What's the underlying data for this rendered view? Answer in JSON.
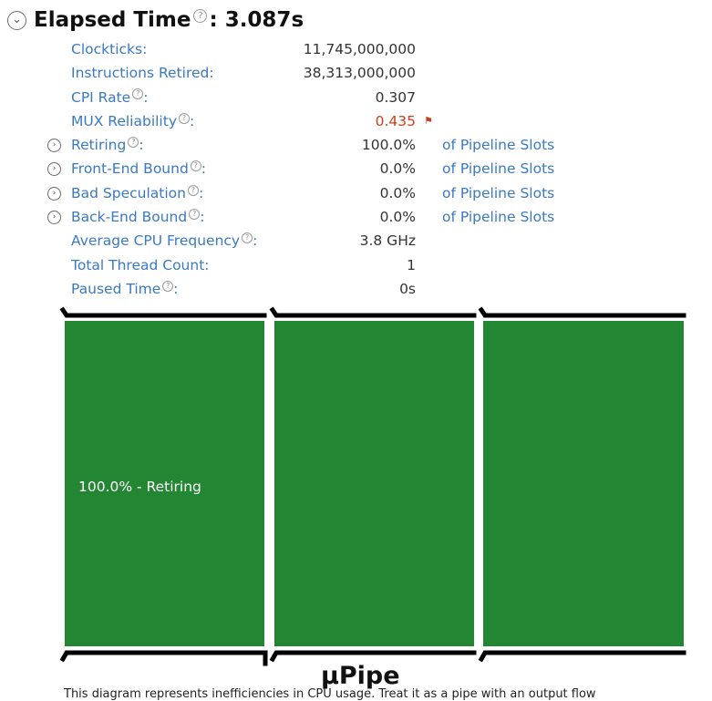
{
  "header": {
    "expand_icon": "circle-chevron-down-icon",
    "title": "Elapsed Time",
    "help_icon": "question-circle-icon",
    "value": ": 3.087s"
  },
  "metrics": [
    {
      "label": "Clockticks",
      "help": false,
      "expandable": false,
      "value": "11,745,000,000",
      "unit": ""
    },
    {
      "label": "Instructions Retired",
      "help": false,
      "expandable": false,
      "value": "38,313,000,000",
      "unit": ""
    },
    {
      "label": "CPI Rate",
      "help": true,
      "expandable": false,
      "value": "0.307",
      "unit": ""
    },
    {
      "label": "MUX Reliability",
      "help": true,
      "expandable": false,
      "value": "0.435",
      "unit": "",
      "warning": true
    },
    {
      "label": "Retiring",
      "help": true,
      "expandable": true,
      "value": "100.0%",
      "unit": "of Pipeline Slots"
    },
    {
      "label": "Front-End Bound",
      "help": true,
      "expandable": true,
      "value": "0.0%",
      "unit": "of Pipeline Slots"
    },
    {
      "label": "Bad Speculation",
      "help": true,
      "expandable": true,
      "value": "0.0%",
      "unit": "of Pipeline Slots"
    },
    {
      "label": "Back-End Bound",
      "help": true,
      "expandable": true,
      "value": "0.0%",
      "unit": "of Pipeline Slots"
    },
    {
      "label": "Average CPU Frequency",
      "help": true,
      "expandable": false,
      "value": "3.8 GHz",
      "unit": ""
    },
    {
      "label": "Total Thread Count",
      "help": false,
      "expandable": false,
      "value": "1",
      "unit": ""
    },
    {
      "label": "Paused Time",
      "help": true,
      "expandable": false,
      "value": "0s",
      "unit": ""
    }
  ],
  "colors": {
    "link": "#3a79c4",
    "warning": "#c8401a",
    "retiring": "#238632"
  },
  "diagram": {
    "retiring_fraction": 1.0,
    "bar_label": "100.0% - Retiring",
    "title": "µPipe"
  },
  "footer": {
    "text": "This diagram represents inefficiencies in CPU usage. Treat it as a pipe with an output flow"
  }
}
